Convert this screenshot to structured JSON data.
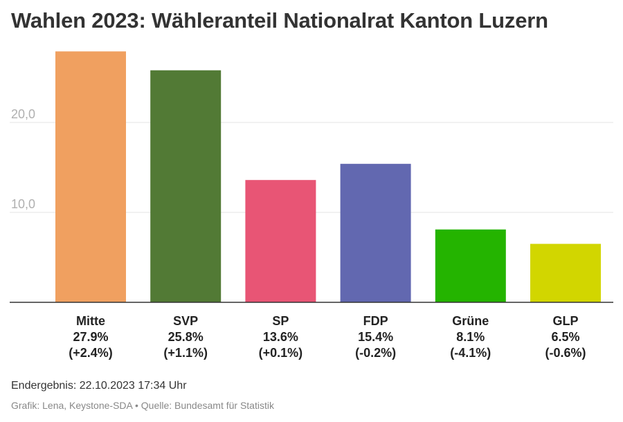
{
  "chart_data": {
    "type": "bar",
    "title": "Wahlen 2023: Wähleranteil Nationalrat Kanton Luzern",
    "categories": [
      "Mitte",
      "SVP",
      "SP",
      "FDP",
      "Grüne",
      "GLP"
    ],
    "values": [
      27.9,
      25.8,
      13.6,
      15.4,
      8.1,
      6.5
    ],
    "value_labels": [
      "27.9%",
      "25.8%",
      "13.6%",
      "15.4%",
      "8.1%",
      "6.5%"
    ],
    "change_labels": [
      "(+2.4%)",
      "(+1.1%)",
      "(+0.1%)",
      "(-0.2%)",
      "(-4.1%)",
      "(-0.6%)"
    ],
    "colors": [
      "#f0a060",
      "#527a35",
      "#e85575",
      "#6268b0",
      "#24b400",
      "#d2d600"
    ],
    "yticks": [
      10,
      20
    ],
    "ytick_labels": [
      "10,0",
      "20,0"
    ],
    "ylim": [
      0,
      28
    ],
    "grid": true,
    "xlabel": "",
    "ylabel": ""
  },
  "footer": {
    "status": "Endergebnis: 22.10.2023 17:34 Uhr",
    "credits": "Grafik: Lena, Keystone-SDA • Quelle: Bundesamt für Statistik"
  }
}
